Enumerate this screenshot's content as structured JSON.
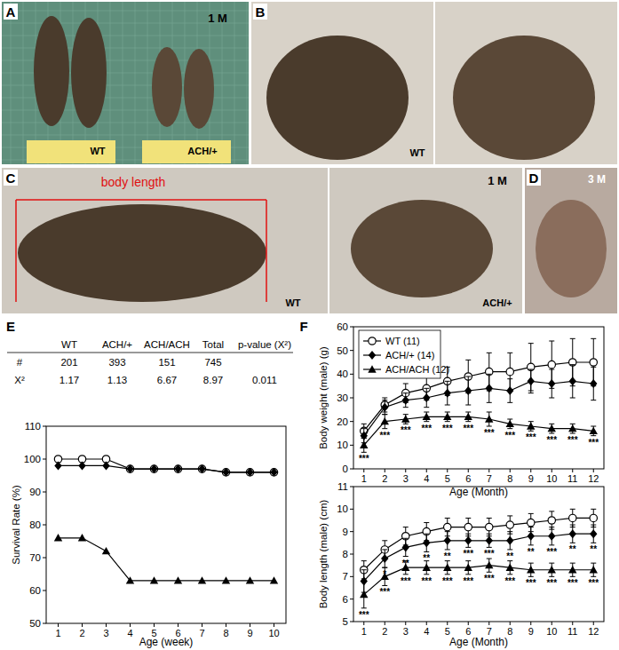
{
  "figure_labels": [
    "A",
    "B",
    "C",
    "D",
    "E",
    "F"
  ],
  "photos": [
    {
      "texts": [
        "1 M",
        "WT",
        "ACH/+"
      ]
    },
    {
      "texts": [
        "WT"
      ]
    },
    {
      "texts": [
        "1 M",
        "body length",
        "WT",
        "ACH/+"
      ]
    },
    {
      "texts": [
        "3 M"
      ]
    }
  ],
  "table": {
    "header": [
      null,
      "WT",
      "ACH/+",
      "ACH/ACH",
      "Total",
      "p-value (X²)"
    ],
    "rows": [
      [
        "#",
        201,
        393,
        151,
        745,
        null
      ],
      [
        "X²",
        1.17,
        1.13,
        6.67,
        8.97,
        0.011
      ]
    ]
  },
  "chart_data": [
    {
      "type": "line",
      "x_label": "Age (week)",
      "y_label": "Survival Rate (%)",
      "x": [
        1,
        2,
        3,
        4,
        5,
        6,
        7,
        8,
        9,
        10
      ],
      "xlim": [
        0.5,
        10.5
      ],
      "xticks": [
        1,
        2,
        3,
        4,
        5,
        6,
        7,
        8,
        9,
        10
      ],
      "ylim": [
        50,
        110
      ],
      "yticks": [
        50,
        60,
        70,
        80,
        90,
        100,
        110
      ],
      "series": [
        {
          "color": "#000000",
          "marker": "circle",
          "values": [
            100,
            100,
            100,
            97,
            97,
            97,
            97,
            96,
            96,
            96
          ]
        },
        {
          "color": "#000000",
          "marker": "diamond",
          "values": [
            98,
            98,
            98,
            97,
            97,
            97,
            97,
            96,
            96,
            96
          ]
        },
        {
          "color": "#000000",
          "marker": "triangle",
          "values": [
            76,
            76,
            72,
            63,
            63,
            63,
            63,
            63,
            63,
            63
          ]
        }
      ]
    },
    {
      "type": "line",
      "x_label": "Age (Month)",
      "y_label": "Body weight (male) (g)",
      "legend": "upper left",
      "x": [
        1,
        2,
        3,
        4,
        5,
        6,
        7,
        8,
        9,
        10,
        11,
        12
      ],
      "xlim": [
        0.5,
        12.5
      ],
      "xticks": [
        1,
        2,
        3,
        4,
        5,
        6,
        7,
        8,
        9,
        10,
        11,
        12
      ],
      "ylim": [
        0,
        60
      ],
      "yticks": [
        0,
        10,
        20,
        30,
        40,
        50,
        60
      ],
      "series": [
        {
          "name": "WT (11)",
          "color": "#000000",
          "marker": "circle",
          "values": [
            16,
            27,
            32,
            34,
            37,
            39,
            41,
            41,
            43,
            44,
            45,
            45
          ],
          "errors": [
            3,
            3,
            4,
            5,
            6,
            7,
            8,
            8,
            10,
            10,
            10,
            10
          ]
        },
        {
          "name": "ACH/+ (14)",
          "color": "#000000",
          "marker": "diamond",
          "values": [
            14,
            26,
            29,
            30,
            32,
            33,
            34,
            33,
            37,
            36,
            37,
            36
          ],
          "errors": [
            3,
            3,
            3,
            4,
            5,
            6,
            6,
            5,
            5,
            6,
            7,
            7
          ]
        },
        {
          "name": "ACH/ACH (12)",
          "color": "#000000",
          "marker": "triangle",
          "values": [
            10,
            20,
            21,
            22,
            22,
            22,
            21,
            19,
            18,
            17,
            17,
            16
          ],
          "errors": [
            3,
            3,
            2,
            2,
            2,
            2,
            3,
            2,
            2,
            2,
            2,
            2
          ],
          "significance": [
            "***",
            "***",
            "***",
            "***",
            "***",
            "***",
            "***",
            "***",
            "***",
            "***",
            "***",
            "***"
          ]
        }
      ]
    },
    {
      "type": "line",
      "x_label": "Age (Month)",
      "y_label": "Body length (male) (cm)",
      "x": [
        1,
        2,
        3,
        4,
        5,
        6,
        7,
        8,
        9,
        10,
        11,
        12
      ],
      "xlim": [
        0.5,
        12.5
      ],
      "xticks": [
        1,
        2,
        3,
        4,
        5,
        6,
        7,
        8,
        9,
        10,
        11,
        12
      ],
      "ylim": [
        5,
        11
      ],
      "yticks": [
        5,
        6,
        7,
        8,
        9,
        10,
        11
      ],
      "series": [
        {
          "color": "#000000",
          "marker": "circle",
          "values": [
            7.3,
            8.2,
            8.8,
            9.0,
            9.2,
            9.2,
            9.2,
            9.3,
            9.4,
            9.5,
            9.6,
            9.6
          ],
          "errors": [
            0.4,
            0.4,
            0.4,
            0.4,
            0.4,
            0.4,
            0.4,
            0.4,
            0.4,
            0.4,
            0.4,
            0.4
          ]
        },
        {
          "color": "#000000",
          "marker": "diamond",
          "values": [
            6.8,
            7.8,
            8.3,
            8.5,
            8.6,
            8.6,
            8.6,
            8.6,
            8.8,
            8.8,
            8.9,
            8.9
          ],
          "errors": [
            0.5,
            0.4,
            0.4,
            0.4,
            0.4,
            0.3,
            0.3,
            0.4,
            0.4,
            0.4,
            0.4,
            0.4
          ],
          "significance": [
            null,
            "*",
            "**",
            "**",
            "**",
            "***",
            "***",
            "**",
            "**",
            "***",
            "**",
            "**"
          ]
        },
        {
          "color": "#000000",
          "marker": "triangle",
          "values": [
            6.2,
            7.0,
            7.4,
            7.4,
            7.4,
            7.4,
            7.5,
            7.4,
            7.3,
            7.3,
            7.3,
            7.3
          ],
          "errors": [
            0.6,
            0.4,
            0.3,
            0.3,
            0.3,
            0.3,
            0.3,
            0.3,
            0.3,
            0.3,
            0.3,
            0.3
          ],
          "significance": [
            "***",
            "***",
            "***",
            "***",
            "***",
            "***",
            "***",
            "***",
            "***",
            "***",
            "***",
            "***"
          ]
        }
      ]
    }
  ]
}
